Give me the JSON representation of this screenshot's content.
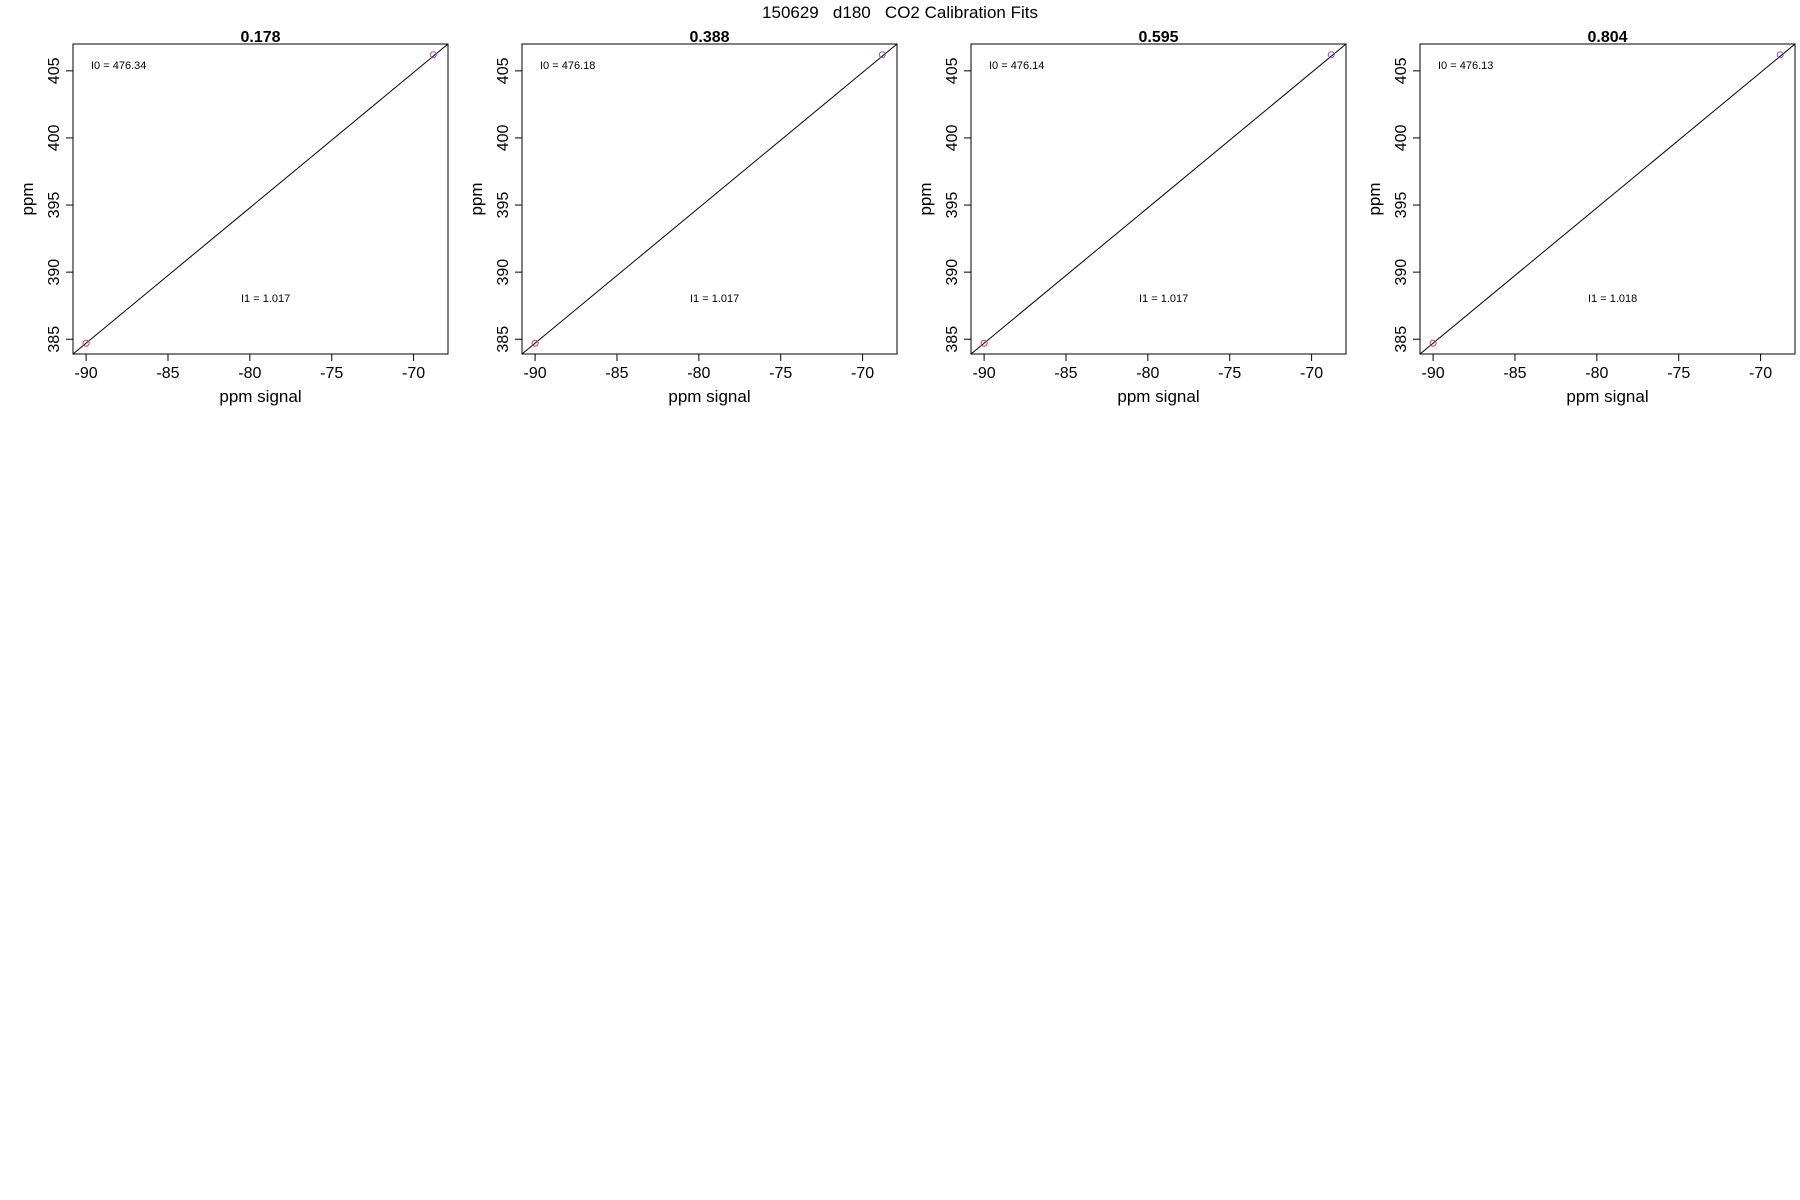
{
  "figure": {
    "title": "150629   d180   CO2 Calibration Fits"
  },
  "chart_data": [
    {
      "type": "scatter",
      "title": "0.178",
      "xlabel": "ppm signal",
      "ylabel": "ppm",
      "xlim": [
        -90.8,
        -67.9
      ],
      "ylim": [
        383.9,
        407.0
      ],
      "xticks": [
        "-90",
        "-85",
        "-80",
        "-75",
        "-70"
      ],
      "yticks": [
        "385",
        "390",
        "395",
        "400",
        "405"
      ],
      "points": [
        {
          "x": -90.0,
          "y": 384.7,
          "color": "#e33b3b"
        },
        {
          "x": -68.8,
          "y": 406.2,
          "color": "#8a4fd8"
        }
      ],
      "fit_line": {
        "x": [
          -90.8,
          -67.9
        ],
        "y": [
          383.9,
          407.0
        ]
      },
      "annotations": {
        "i0": "I0 = 476.34",
        "i1": "I1 = 1.017"
      },
      "grid": false
    },
    {
      "type": "scatter",
      "title": "0.388",
      "xlabel": "ppm signal",
      "ylabel": "ppm",
      "xlim": [
        -90.8,
        -67.9
      ],
      "ylim": [
        383.9,
        407.0
      ],
      "xticks": [
        "-90",
        "-85",
        "-80",
        "-75",
        "-70"
      ],
      "yticks": [
        "385",
        "390",
        "395",
        "400",
        "405"
      ],
      "points": [
        {
          "x": -90.0,
          "y": 384.7,
          "color": "#e33b3b"
        },
        {
          "x": -68.8,
          "y": 406.2,
          "color": "#8a4fd8"
        }
      ],
      "fit_line": {
        "x": [
          -90.8,
          -67.9
        ],
        "y": [
          383.9,
          407.0
        ]
      },
      "annotations": {
        "i0": "I0 = 476.18",
        "i1": "I1 = 1.017"
      },
      "grid": false
    },
    {
      "type": "scatter",
      "title": "0.595",
      "xlabel": "ppm signal",
      "ylabel": "ppm",
      "xlim": [
        -90.8,
        -67.9
      ],
      "ylim": [
        383.9,
        407.0
      ],
      "xticks": [
        "-90",
        "-85",
        "-80",
        "-75",
        "-70"
      ],
      "yticks": [
        "385",
        "390",
        "395",
        "400",
        "405"
      ],
      "points": [
        {
          "x": -90.0,
          "y": 384.7,
          "color": "#e33b3b"
        },
        {
          "x": -68.8,
          "y": 406.2,
          "color": "#8a4fd8"
        }
      ],
      "fit_line": {
        "x": [
          -90.8,
          -67.9
        ],
        "y": [
          383.9,
          407.0
        ]
      },
      "annotations": {
        "i0": "I0 = 476.14",
        "i1": "I1 = 1.017"
      },
      "grid": false
    },
    {
      "type": "scatter",
      "title": "0.804",
      "xlabel": "ppm signal",
      "ylabel": "ppm",
      "xlim": [
        -90.8,
        -67.9
      ],
      "ylim": [
        383.9,
        407.0
      ],
      "xticks": [
        "-90",
        "-85",
        "-80",
        "-75",
        "-70"
      ],
      "yticks": [
        "385",
        "390",
        "395",
        "400",
        "405"
      ],
      "points": [
        {
          "x": -90.0,
          "y": 384.7,
          "color": "#e33b3b"
        },
        {
          "x": -68.8,
          "y": 406.2,
          "color": "#8a4fd8"
        }
      ],
      "fit_line": {
        "x": [
          -90.8,
          -67.9
        ],
        "y": [
          383.9,
          407.0
        ]
      },
      "annotations": {
        "i0": "I0 = 476.13",
        "i1": "I1 = 1.018"
      },
      "grid": false
    }
  ]
}
